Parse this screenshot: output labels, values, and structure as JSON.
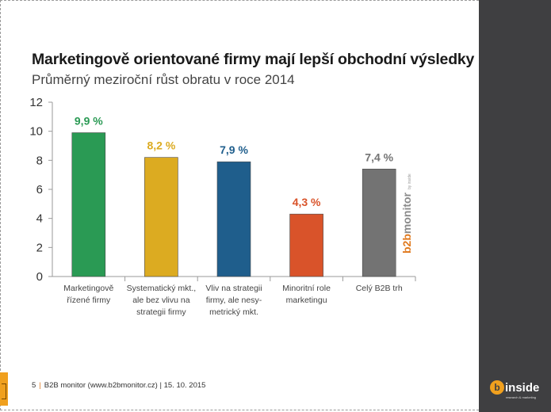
{
  "title": "Marketingově orientované firmy mají lepší obchodní výsledky",
  "subtitle": "Průměrný meziroční růst obratu v roce 2014",
  "chart_data": {
    "type": "bar",
    "title": "Marketingově orientované firmy mají lepší obchodní výsledky",
    "subtitle": "Průměrný meziroční růst obratu v roce 2014",
    "categories": [
      [
        "Marketingově",
        "řízené firmy"
      ],
      [
        "Systematický mkt.,",
        "ale bez vlivu na",
        "strategii firmy"
      ],
      [
        "Vliv na strategii",
        "firmy, ale nesy-",
        "metrický mkt."
      ],
      [
        "Minoritní role",
        "marketingu"
      ],
      [
        "Celý B2B trh"
      ]
    ],
    "values": [
      9.9,
      8.2,
      7.9,
      4.3,
      7.4
    ],
    "data_labels": [
      "9,9 %",
      "8,2 %",
      "7,9 %",
      "4,3 %",
      "7,4 %"
    ],
    "colors": [
      "#2a9a54",
      "#dcab21",
      "#1f5e8c",
      "#d9532a",
      "#737373"
    ],
    "ylim": [
      0,
      12
    ],
    "yticks": [
      0,
      2,
      4,
      6,
      8,
      10,
      12
    ],
    "grid": false,
    "xlabel": "",
    "ylabel": ""
  },
  "watermark": {
    "b2b": "b2b",
    "rest": "monitor",
    "small": "by inside"
  },
  "footer": {
    "page": "5",
    "text": "B2B monitor (www.b2bmonitor.cz) | 15. 10. 2015"
  },
  "logo": {
    "icon": "b",
    "text": "inside",
    "tagline": "research & marketing"
  }
}
